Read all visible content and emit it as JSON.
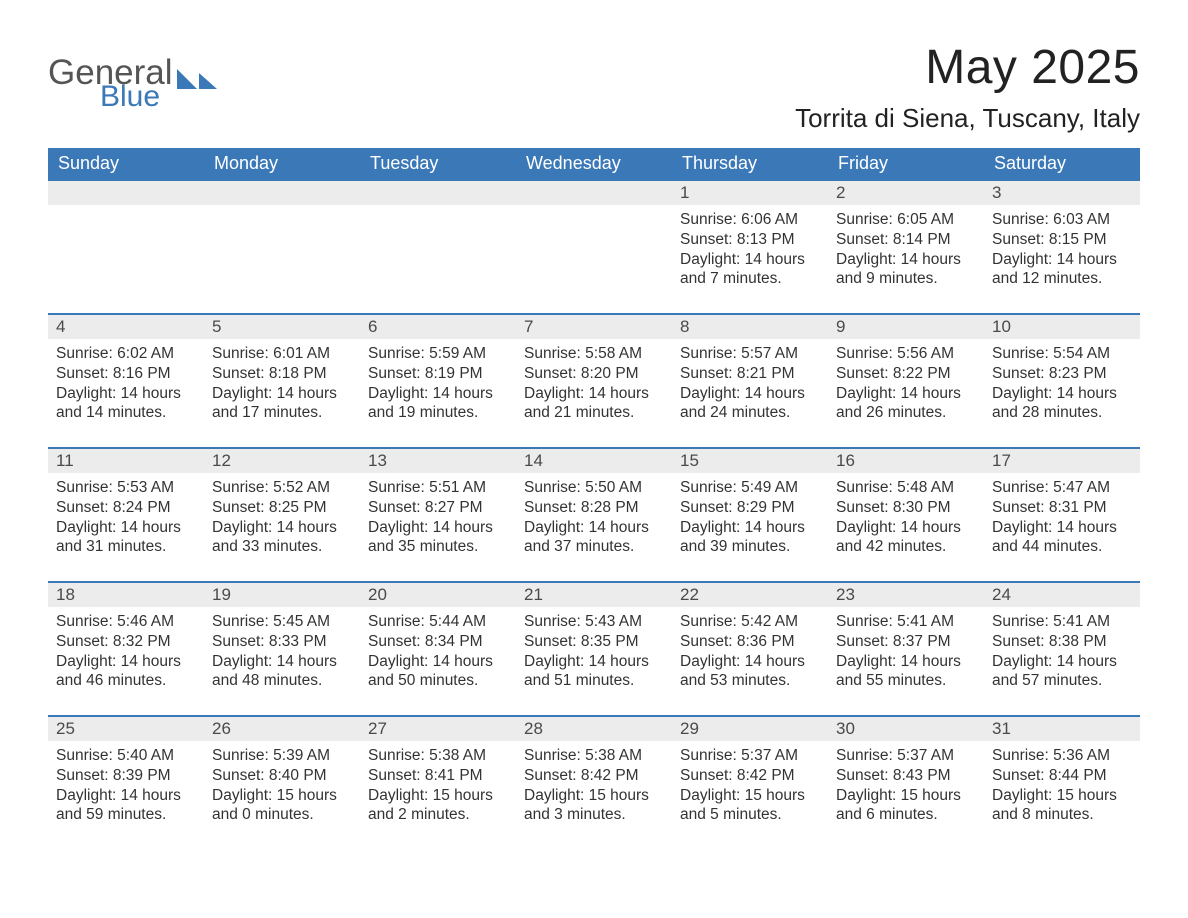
{
  "brand": {
    "general": "General",
    "blue": "Blue"
  },
  "title": "May 2025",
  "location": "Torrita di Siena, Tuscany, Italy",
  "colors": {
    "header_bg": "#3b78b8",
    "header_text": "#ffffff",
    "daynum_bg": "#ececec",
    "row_border": "#3b78b8",
    "body_text": "#333333",
    "title_text": "#222222"
  },
  "weekdays": [
    "Sunday",
    "Monday",
    "Tuesday",
    "Wednesday",
    "Thursday",
    "Friday",
    "Saturday"
  ],
  "weeks": [
    [
      {
        "day": "",
        "sunrise": "",
        "sunset": "",
        "daylight": ""
      },
      {
        "day": "",
        "sunrise": "",
        "sunset": "",
        "daylight": ""
      },
      {
        "day": "",
        "sunrise": "",
        "sunset": "",
        "daylight": ""
      },
      {
        "day": "",
        "sunrise": "",
        "sunset": "",
        "daylight": ""
      },
      {
        "day": "1",
        "sunrise": "Sunrise: 6:06 AM",
        "sunset": "Sunset: 8:13 PM",
        "daylight": "Daylight: 14 hours and 7 minutes."
      },
      {
        "day": "2",
        "sunrise": "Sunrise: 6:05 AM",
        "sunset": "Sunset: 8:14 PM",
        "daylight": "Daylight: 14 hours and 9 minutes."
      },
      {
        "day": "3",
        "sunrise": "Sunrise: 6:03 AM",
        "sunset": "Sunset: 8:15 PM",
        "daylight": "Daylight: 14 hours and 12 minutes."
      }
    ],
    [
      {
        "day": "4",
        "sunrise": "Sunrise: 6:02 AM",
        "sunset": "Sunset: 8:16 PM",
        "daylight": "Daylight: 14 hours and 14 minutes."
      },
      {
        "day": "5",
        "sunrise": "Sunrise: 6:01 AM",
        "sunset": "Sunset: 8:18 PM",
        "daylight": "Daylight: 14 hours and 17 minutes."
      },
      {
        "day": "6",
        "sunrise": "Sunrise: 5:59 AM",
        "sunset": "Sunset: 8:19 PM",
        "daylight": "Daylight: 14 hours and 19 minutes."
      },
      {
        "day": "7",
        "sunrise": "Sunrise: 5:58 AM",
        "sunset": "Sunset: 8:20 PM",
        "daylight": "Daylight: 14 hours and 21 minutes."
      },
      {
        "day": "8",
        "sunrise": "Sunrise: 5:57 AM",
        "sunset": "Sunset: 8:21 PM",
        "daylight": "Daylight: 14 hours and 24 minutes."
      },
      {
        "day": "9",
        "sunrise": "Sunrise: 5:56 AM",
        "sunset": "Sunset: 8:22 PM",
        "daylight": "Daylight: 14 hours and 26 minutes."
      },
      {
        "day": "10",
        "sunrise": "Sunrise: 5:54 AM",
        "sunset": "Sunset: 8:23 PM",
        "daylight": "Daylight: 14 hours and 28 minutes."
      }
    ],
    [
      {
        "day": "11",
        "sunrise": "Sunrise: 5:53 AM",
        "sunset": "Sunset: 8:24 PM",
        "daylight": "Daylight: 14 hours and 31 minutes."
      },
      {
        "day": "12",
        "sunrise": "Sunrise: 5:52 AM",
        "sunset": "Sunset: 8:25 PM",
        "daylight": "Daylight: 14 hours and 33 minutes."
      },
      {
        "day": "13",
        "sunrise": "Sunrise: 5:51 AM",
        "sunset": "Sunset: 8:27 PM",
        "daylight": "Daylight: 14 hours and 35 minutes."
      },
      {
        "day": "14",
        "sunrise": "Sunrise: 5:50 AM",
        "sunset": "Sunset: 8:28 PM",
        "daylight": "Daylight: 14 hours and 37 minutes."
      },
      {
        "day": "15",
        "sunrise": "Sunrise: 5:49 AM",
        "sunset": "Sunset: 8:29 PM",
        "daylight": "Daylight: 14 hours and 39 minutes."
      },
      {
        "day": "16",
        "sunrise": "Sunrise: 5:48 AM",
        "sunset": "Sunset: 8:30 PM",
        "daylight": "Daylight: 14 hours and 42 minutes."
      },
      {
        "day": "17",
        "sunrise": "Sunrise: 5:47 AM",
        "sunset": "Sunset: 8:31 PM",
        "daylight": "Daylight: 14 hours and 44 minutes."
      }
    ],
    [
      {
        "day": "18",
        "sunrise": "Sunrise: 5:46 AM",
        "sunset": "Sunset: 8:32 PM",
        "daylight": "Daylight: 14 hours and 46 minutes."
      },
      {
        "day": "19",
        "sunrise": "Sunrise: 5:45 AM",
        "sunset": "Sunset: 8:33 PM",
        "daylight": "Daylight: 14 hours and 48 minutes."
      },
      {
        "day": "20",
        "sunrise": "Sunrise: 5:44 AM",
        "sunset": "Sunset: 8:34 PM",
        "daylight": "Daylight: 14 hours and 50 minutes."
      },
      {
        "day": "21",
        "sunrise": "Sunrise: 5:43 AM",
        "sunset": "Sunset: 8:35 PM",
        "daylight": "Daylight: 14 hours and 51 minutes."
      },
      {
        "day": "22",
        "sunrise": "Sunrise: 5:42 AM",
        "sunset": "Sunset: 8:36 PM",
        "daylight": "Daylight: 14 hours and 53 minutes."
      },
      {
        "day": "23",
        "sunrise": "Sunrise: 5:41 AM",
        "sunset": "Sunset: 8:37 PM",
        "daylight": "Daylight: 14 hours and 55 minutes."
      },
      {
        "day": "24",
        "sunrise": "Sunrise: 5:41 AM",
        "sunset": "Sunset: 8:38 PM",
        "daylight": "Daylight: 14 hours and 57 minutes."
      }
    ],
    [
      {
        "day": "25",
        "sunrise": "Sunrise: 5:40 AM",
        "sunset": "Sunset: 8:39 PM",
        "daylight": "Daylight: 14 hours and 59 minutes."
      },
      {
        "day": "26",
        "sunrise": "Sunrise: 5:39 AM",
        "sunset": "Sunset: 8:40 PM",
        "daylight": "Daylight: 15 hours and 0 minutes."
      },
      {
        "day": "27",
        "sunrise": "Sunrise: 5:38 AM",
        "sunset": "Sunset: 8:41 PM",
        "daylight": "Daylight: 15 hours and 2 minutes."
      },
      {
        "day": "28",
        "sunrise": "Sunrise: 5:38 AM",
        "sunset": "Sunset: 8:42 PM",
        "daylight": "Daylight: 15 hours and 3 minutes."
      },
      {
        "day": "29",
        "sunrise": "Sunrise: 5:37 AM",
        "sunset": "Sunset: 8:42 PM",
        "daylight": "Daylight: 15 hours and 5 minutes."
      },
      {
        "day": "30",
        "sunrise": "Sunrise: 5:37 AM",
        "sunset": "Sunset: 8:43 PM",
        "daylight": "Daylight: 15 hours and 6 minutes."
      },
      {
        "day": "31",
        "sunrise": "Sunrise: 5:36 AM",
        "sunset": "Sunset: 8:44 PM",
        "daylight": "Daylight: 15 hours and 8 minutes."
      }
    ]
  ]
}
